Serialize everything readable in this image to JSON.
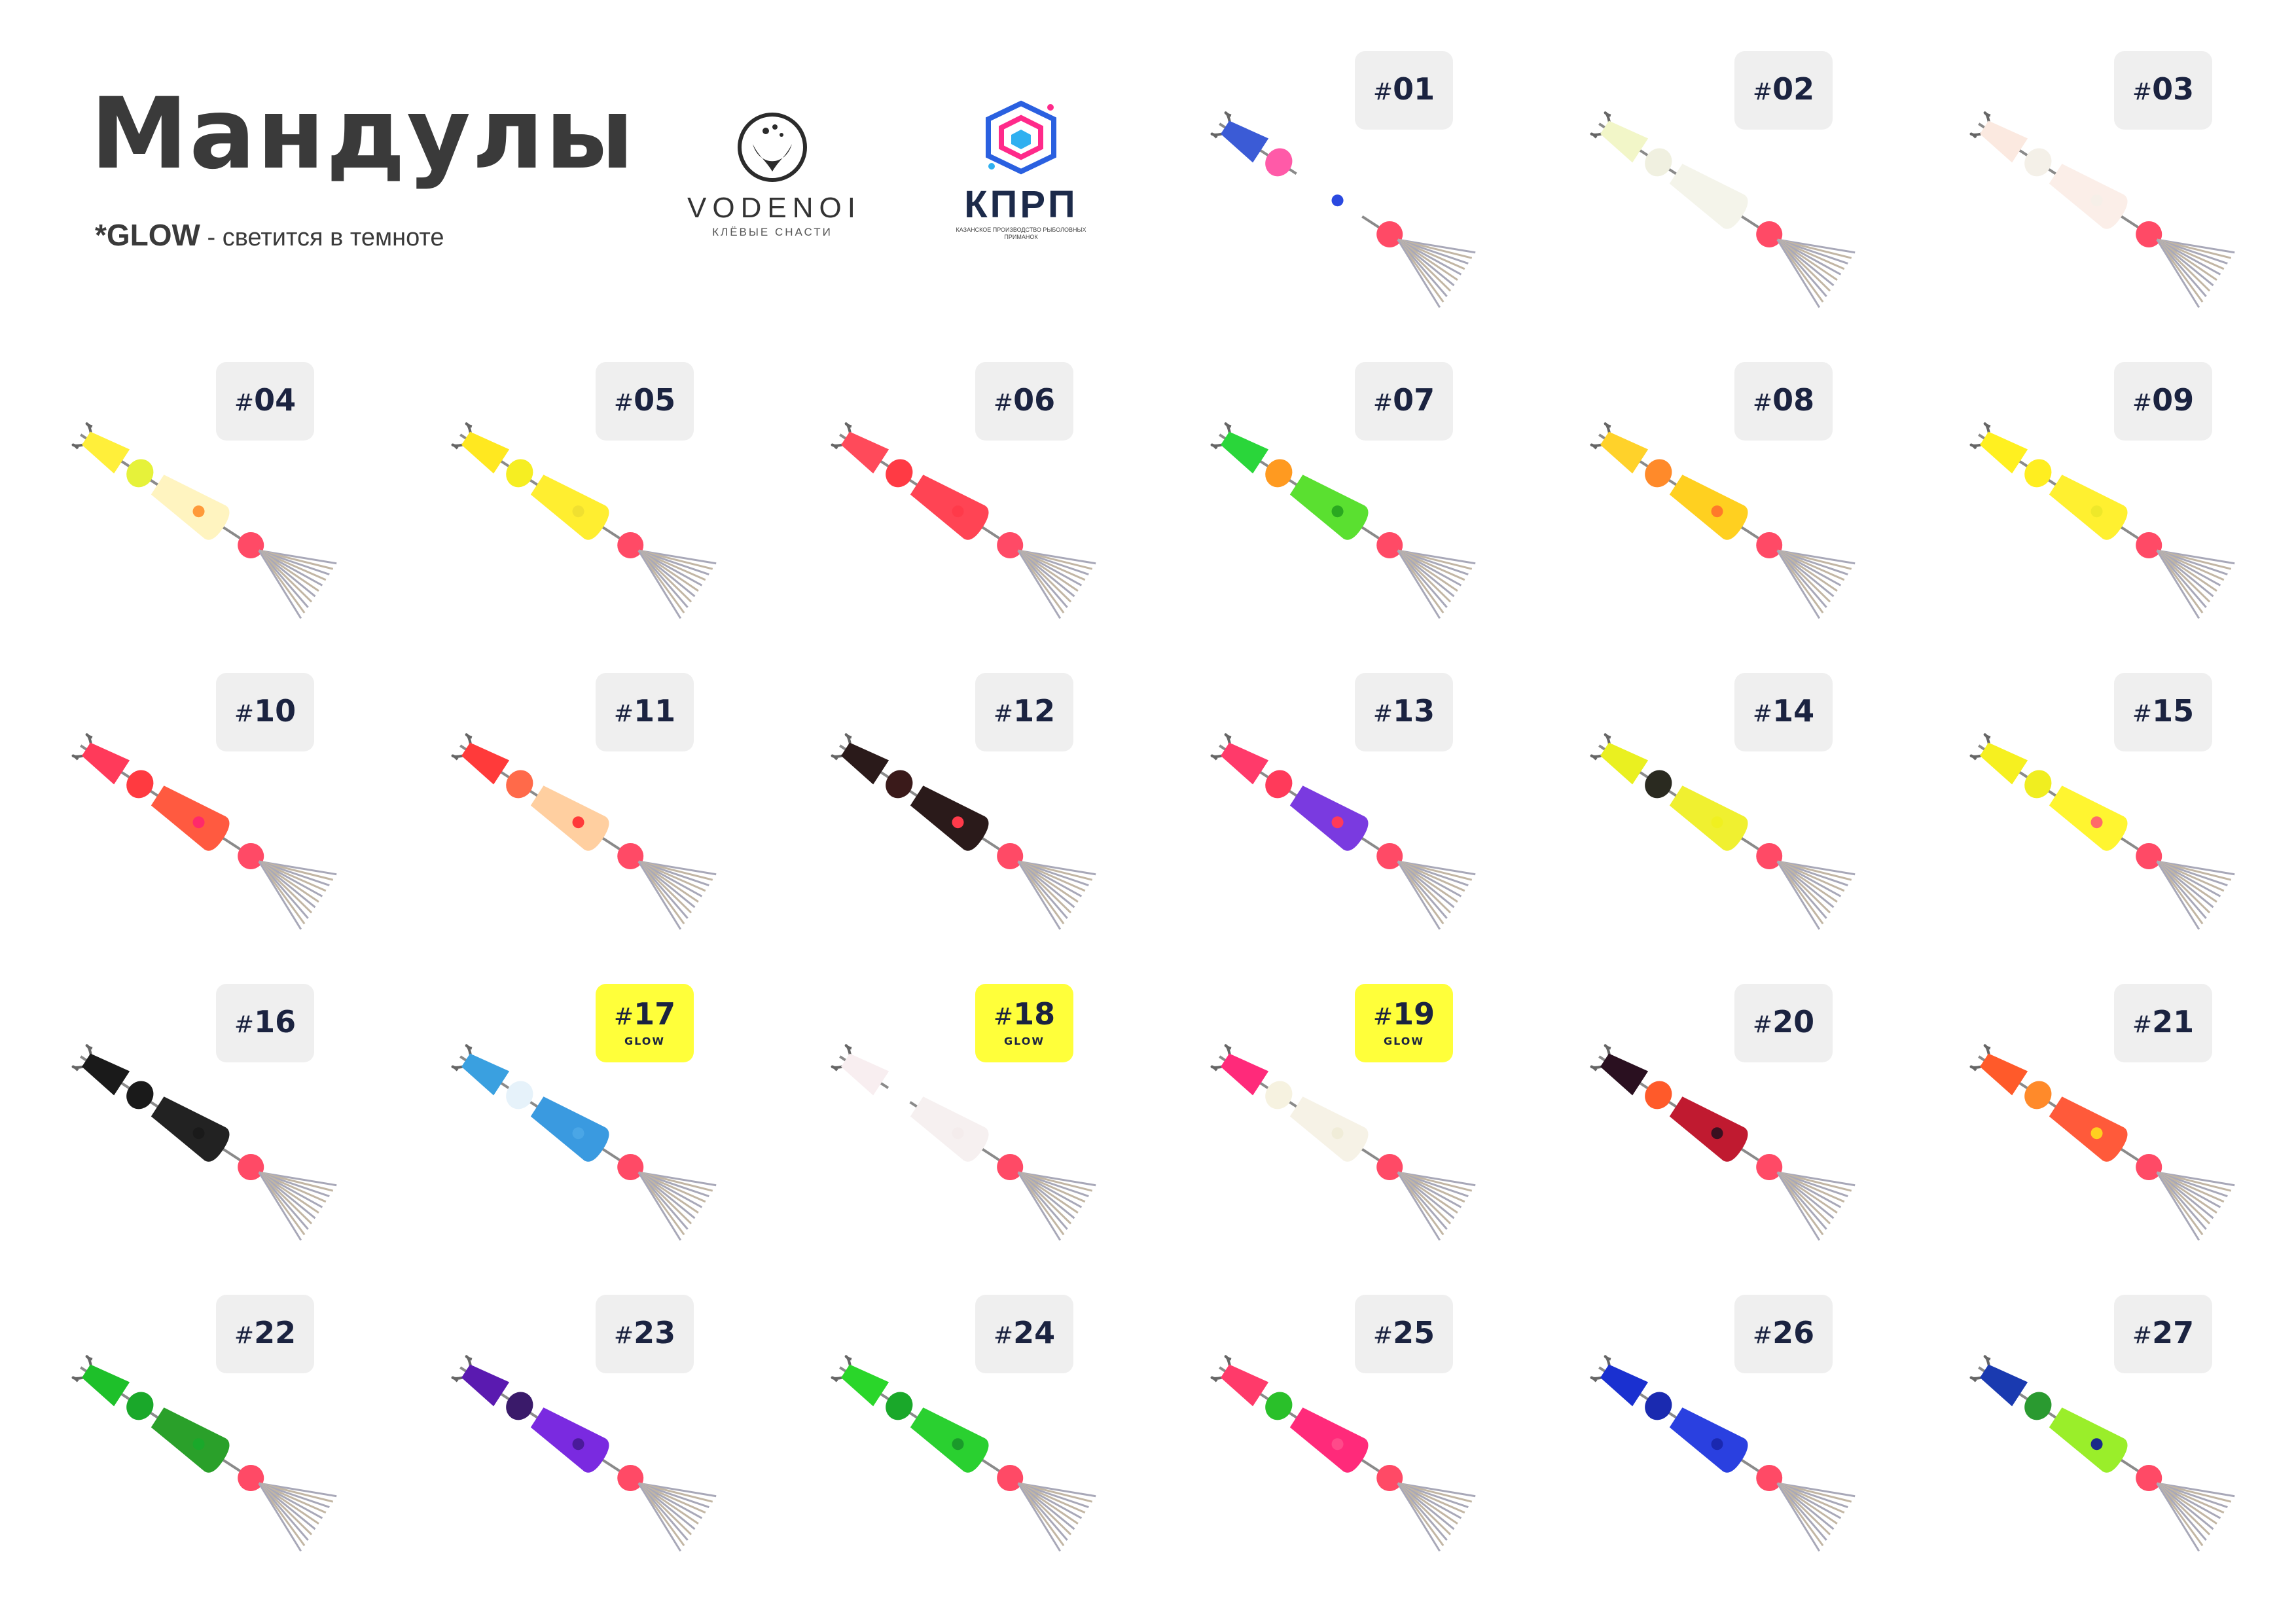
{
  "header": {
    "title": "Мандулы",
    "glow_word": "*GLOW",
    "glow_desc": " - светится в темноте"
  },
  "logos": {
    "vodenoi": {
      "name": "VODENOI",
      "tagline": "КЛЁВЫЕ СНАСТИ"
    },
    "kprp": {
      "name": "КПРП",
      "tagline": "КАЗАНСКОЕ ПРОИЗВОДСТВО РЫБОЛОВНЫХ ПРИМАНОК"
    }
  },
  "items": [
    {
      "num": "01",
      "glow": false,
      "colors": [
        "#3b5bd6",
        "#ff5aa8",
        "#ffffff",
        "#2a49e0"
      ]
    },
    {
      "num": "02",
      "glow": false,
      "colors": [
        "#f2f6c8",
        "#f0f0e0",
        "#f4f4ea",
        "#f4f4ea"
      ]
    },
    {
      "num": "03",
      "glow": false,
      "colors": [
        "#fbe9e0",
        "#f4f0e8",
        "#fbeee8",
        "#f6efe8"
      ]
    },
    {
      "num": "04",
      "glow": false,
      "colors": [
        "#ffef3a",
        "#e6f23a",
        "#fff4c0",
        "#ff9a3a"
      ]
    },
    {
      "num": "05",
      "glow": false,
      "colors": [
        "#ffe820",
        "#f6ee22",
        "#ffee30",
        "#f0e030"
      ]
    },
    {
      "num": "06",
      "glow": false,
      "colors": [
        "#ff4a5a",
        "#ff3a44",
        "#ff4454",
        "#ff3a4a"
      ]
    },
    {
      "num": "07",
      "glow": false,
      "colors": [
        "#2ad63a",
        "#ff9a20",
        "#5ae030",
        "#2aa820"
      ]
    },
    {
      "num": "08",
      "glow": false,
      "colors": [
        "#ffd22a",
        "#ff8a2a",
        "#ffd020",
        "#ff7a2a"
      ]
    },
    {
      "num": "09",
      "glow": false,
      "colors": [
        "#fff020",
        "#ffee20",
        "#fff030",
        "#eee82a"
      ]
    },
    {
      "num": "10",
      "glow": false,
      "colors": [
        "#ff3a5a",
        "#ff3a40",
        "#ff5a40",
        "#ff2a6a"
      ]
    },
    {
      "num": "11",
      "glow": false,
      "colors": [
        "#ff3a3a",
        "#ff6a4a",
        "#ffcfa0",
        "#ff3a3a"
      ]
    },
    {
      "num": "12",
      "glow": false,
      "colors": [
        "#2a1a1a",
        "#3a1a1a",
        "#2a1a1a",
        "#ff3a4a"
      ]
    },
    {
      "num": "13",
      "glow": false,
      "colors": [
        "#ff3a6a",
        "#ff3a5a",
        "#7a3ae0",
        "#ff3a5a"
      ]
    },
    {
      "num": "14",
      "glow": false,
      "colors": [
        "#eaf020",
        "#2a2a20",
        "#f0f030",
        "#f0f020"
      ]
    },
    {
      "num": "15",
      "glow": false,
      "colors": [
        "#f6f020",
        "#f0ee20",
        "#fff530",
        "#ff6a6a"
      ]
    },
    {
      "num": "16",
      "glow": false,
      "colors": [
        "#1a1a1a",
        "#1a1a1a",
        "#222222",
        "#1a1a1a"
      ]
    },
    {
      "num": "17",
      "glow": true,
      "glow_label": "GLOW",
      "colors": [
        "#3aa0e0",
        "#e6f2fa",
        "#3a9ae0",
        "#4aa6e6"
      ]
    },
    {
      "num": "18",
      "glow": true,
      "glow_label": "GLOW",
      "colors": [
        "#f8eef0",
        "#ffffff",
        "#f6f0f0",
        "#f4ecec"
      ]
    },
    {
      "num": "19",
      "glow": true,
      "glow_label": "GLOW",
      "colors": [
        "#ff2a7a",
        "#f6f2e0",
        "#f6f2e6",
        "#f0ecd8"
      ]
    },
    {
      "num": "20",
      "glow": false,
      "colors": [
        "#2a1020",
        "#ff5a2a",
        "#c01a30",
        "#3a1020"
      ]
    },
    {
      "num": "21",
      "glow": false,
      "colors": [
        "#ff5a2a",
        "#ff8a2a",
        "#ff5a3a",
        "#ffd020"
      ]
    },
    {
      "num": "22",
      "glow": false,
      "colors": [
        "#1ec02a",
        "#1aa82a",
        "#2aa02a",
        "#1aa82a"
      ]
    },
    {
      "num": "23",
      "glow": false,
      "colors": [
        "#5a1ab0",
        "#3a1a6a",
        "#7a2ae0",
        "#4a1a9a"
      ]
    },
    {
      "num": "24",
      "glow": false,
      "colors": [
        "#2ad62a",
        "#1aa82a",
        "#2ad030",
        "#1a9a2a"
      ]
    },
    {
      "num": "25",
      "glow": false,
      "colors": [
        "#ff3a6a",
        "#2ac02a",
        "#ff2a7a",
        "#ff4a8a"
      ]
    },
    {
      "num": "26",
      "glow": false,
      "colors": [
        "#1a30d0",
        "#1a2ab0",
        "#2a40e0",
        "#1a28b0"
      ]
    },
    {
      "num": "27",
      "glow": false,
      "colors": [
        "#1a3ab0",
        "#2a9a30",
        "#9aee2a",
        "#1a2a8a"
      ]
    }
  ]
}
